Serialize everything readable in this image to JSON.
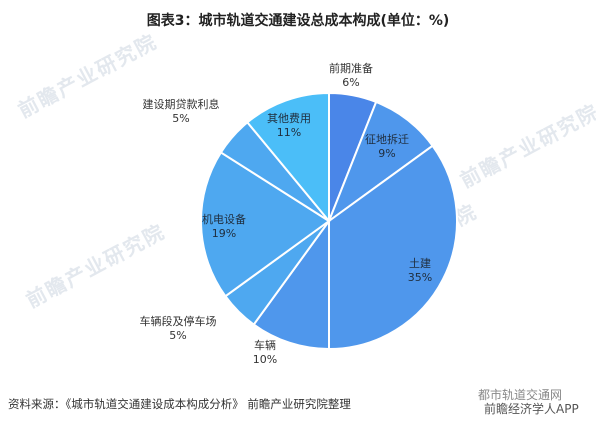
{
  "header": {
    "title": "图表3：城市轨道交通建设总成本构成(单位：%)"
  },
  "footer": {
    "source": "资料来源：《城市轨道交通建设成本构成分析》 前瞻产业研究院整理"
  },
  "watermark": {
    "text": "前瞻产业研究院",
    "right_top": "都市轨道交通网",
    "right_bottom": "前瞻经济学人APP"
  },
  "colors": {
    "dark": "#4a86e8",
    "mid": "#4f97ec",
    "light": "#4ea8f0",
    "cyan": "#4bbef8",
    "stroke": "#ffffff"
  },
  "chart_data": {
    "type": "pie",
    "title": "图表3：城市轨道交通建设总成本构成(单位：%)",
    "unit": "%",
    "slices": [
      {
        "label": "前期准备",
        "value": 6,
        "value_label": "6%",
        "color": "#4a86e8"
      },
      {
        "label": "征地拆迁",
        "value": 9,
        "value_label": "9%",
        "color": "#4f97ec"
      },
      {
        "label": "土建",
        "value": 35,
        "value_label": "35%",
        "color": "#4f97ec"
      },
      {
        "label": "车辆",
        "value": 10,
        "value_label": "10%",
        "color": "#4f97ec"
      },
      {
        "label": "车辆段及停车场",
        "value": 5,
        "value_label": "5%",
        "color": "#4ea8f0"
      },
      {
        "label": "机电设备",
        "value": 19,
        "value_label": "19%",
        "color": "#4ea8f0"
      },
      {
        "label": "建设期贷款利息",
        "value": 5,
        "value_label": "5%",
        "color": "#4ea8f0"
      },
      {
        "label": "其他费用",
        "value": 11,
        "value_label": "11%",
        "color": "#4bbef8"
      }
    ]
  }
}
